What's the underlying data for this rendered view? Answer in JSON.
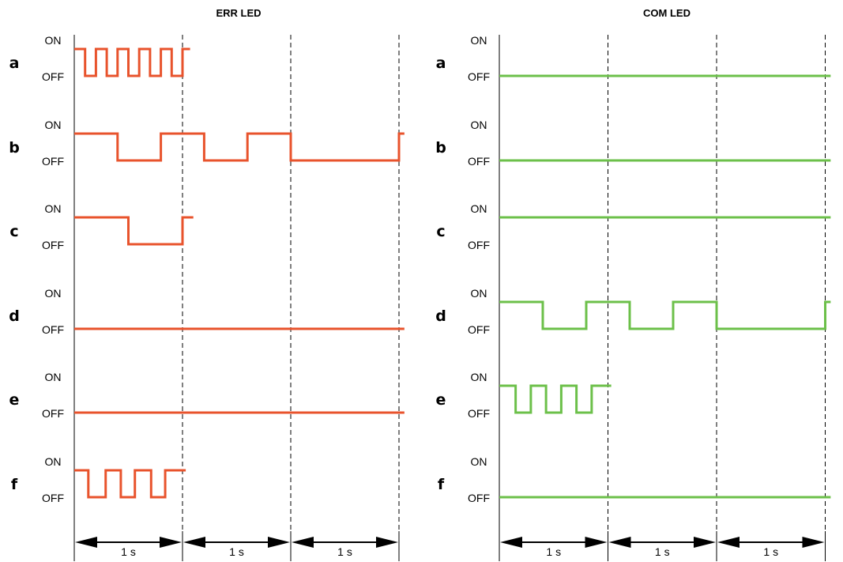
{
  "colors": {
    "err": "#e8532c",
    "com": "#6cc04a",
    "ink": "#000000"
  },
  "time_label": "1 s",
  "state_labels": {
    "on": "ON",
    "off": "OFF"
  },
  "panels": [
    {
      "key": "err",
      "title": "ERR LED",
      "rows": [
        {
          "letter": "a",
          "wave": [
            [
              0,
              1
            ],
            [
              0.1,
              0
            ],
            [
              0.2,
              1
            ],
            [
              0.3,
              0
            ],
            [
              0.4,
              1
            ],
            [
              0.5,
              0
            ],
            [
              0.6,
              1
            ],
            [
              0.7,
              0
            ],
            [
              0.8,
              1
            ],
            [
              0.9,
              0
            ],
            [
              1.0,
              1
            ],
            [
              1.07,
              1
            ]
          ]
        },
        {
          "letter": "b",
          "wave": [
            [
              0,
              1
            ],
            [
              0.4,
              0
            ],
            [
              0.8,
              1
            ],
            [
              1.2,
              0
            ],
            [
              1.6,
              1
            ],
            [
              2.0,
              0
            ],
            [
              3.0,
              1
            ],
            [
              3.05,
              1
            ]
          ]
        },
        {
          "letter": "c",
          "wave": [
            [
              0,
              1
            ],
            [
              0.5,
              0
            ],
            [
              1.0,
              1
            ],
            [
              1.1,
              1
            ]
          ]
        },
        {
          "letter": "d",
          "wave": [
            [
              0,
              0
            ],
            [
              3.05,
              0
            ]
          ]
        },
        {
          "letter": "e",
          "wave": [
            [
              0,
              0
            ],
            [
              3.05,
              0
            ]
          ]
        },
        {
          "letter": "f",
          "wave": [
            [
              0,
              1
            ],
            [
              0.13,
              0
            ],
            [
              0.29,
              1
            ],
            [
              0.43,
              0
            ],
            [
              0.56,
              1
            ],
            [
              0.71,
              0
            ],
            [
              0.84,
              1
            ],
            [
              1.03,
              1
            ]
          ]
        }
      ]
    },
    {
      "key": "com",
      "title": "COM LED",
      "rows": [
        {
          "letter": "a",
          "wave": [
            [
              0,
              0
            ],
            [
              3.05,
              0
            ]
          ]
        },
        {
          "letter": "b",
          "wave": [
            [
              0,
              0
            ],
            [
              3.05,
              0
            ]
          ]
        },
        {
          "letter": "c",
          "wave": [
            [
              0,
              1
            ],
            [
              3.05,
              1
            ]
          ]
        },
        {
          "letter": "d",
          "wave": [
            [
              0,
              1
            ],
            [
              0.4,
              0
            ],
            [
              0.8,
              1
            ],
            [
              1.2,
              0
            ],
            [
              1.6,
              1
            ],
            [
              2.0,
              0
            ],
            [
              3.0,
              1
            ],
            [
              3.05,
              1
            ]
          ]
        },
        {
          "letter": "e",
          "wave": [
            [
              0,
              1
            ],
            [
              0.15,
              0
            ],
            [
              0.29,
              1
            ],
            [
              0.43,
              0
            ],
            [
              0.57,
              1
            ],
            [
              0.71,
              0
            ],
            [
              0.85,
              1
            ],
            [
              1.03,
              1
            ]
          ]
        },
        {
          "letter": "f",
          "wave": [
            [
              0,
              0
            ],
            [
              3.05,
              0
            ]
          ]
        }
      ]
    }
  ]
}
